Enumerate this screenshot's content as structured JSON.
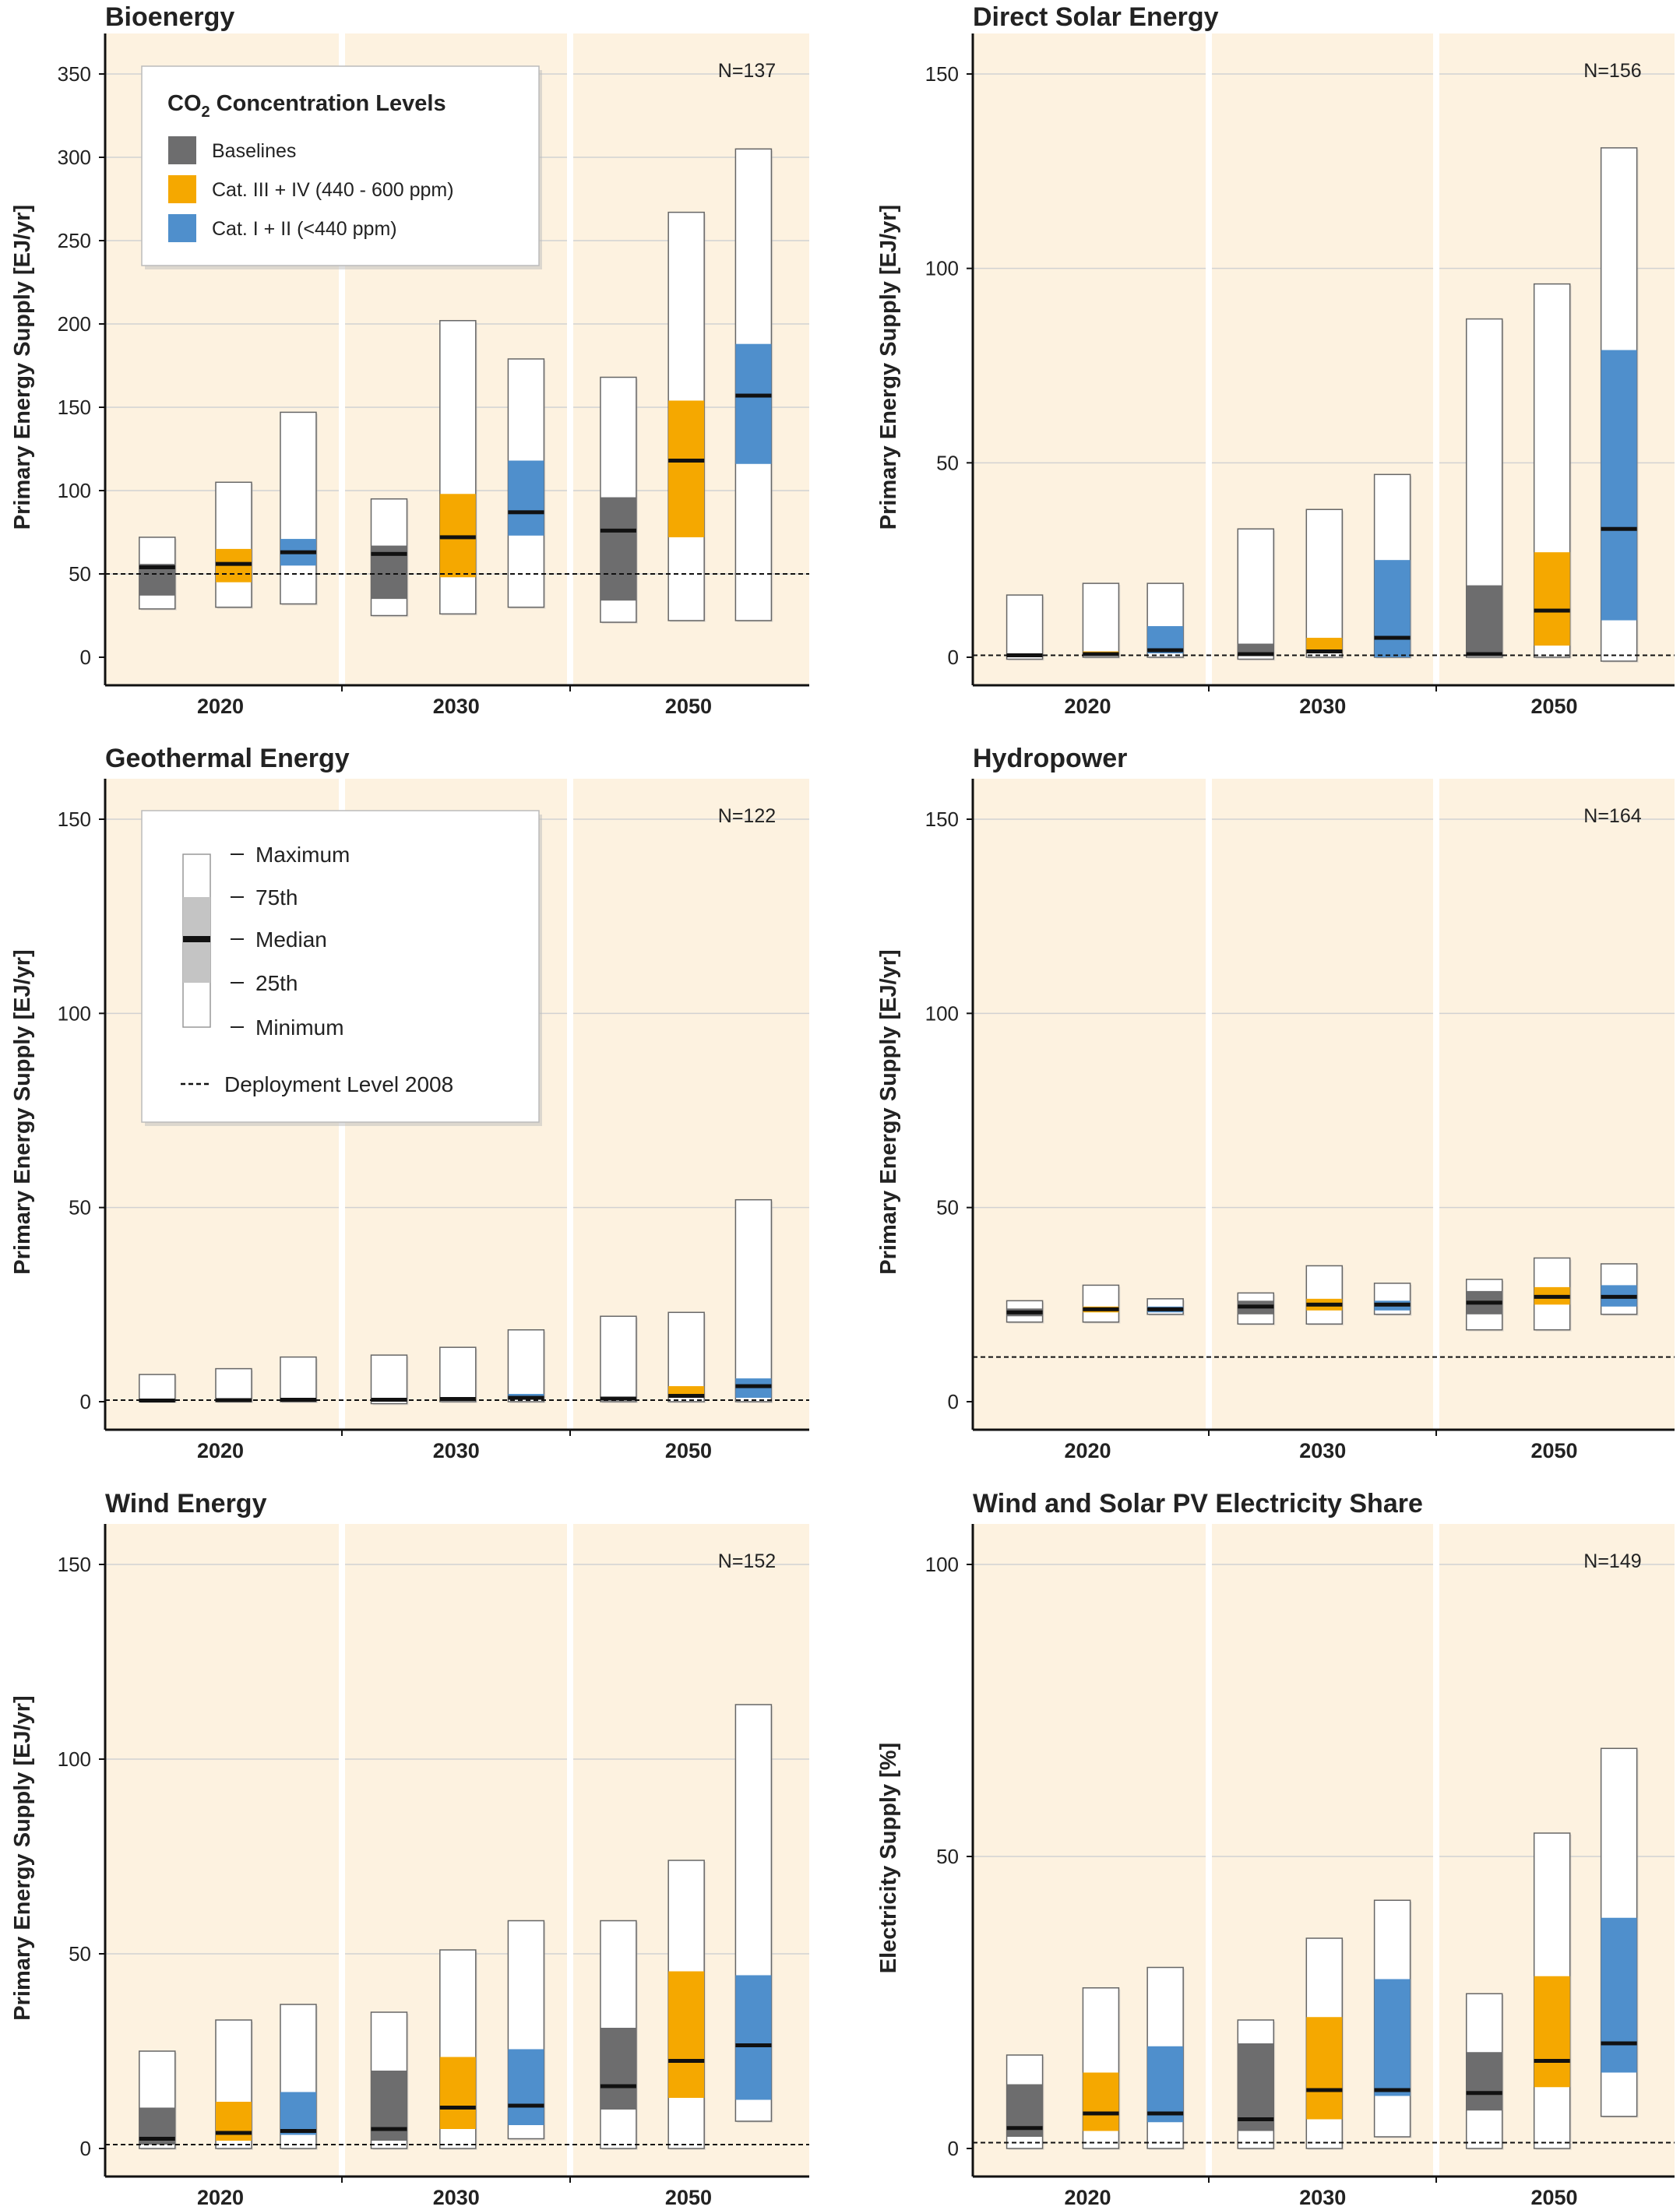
{
  "colors": {
    "background": "#fdf2e0",
    "baselines": "#6d6d6e",
    "cat34": "#f5a800",
    "cat12": "#4f8fcc",
    "grid": "#d2d2d2",
    "median": "#111111"
  },
  "legend": {
    "title_prefix": "CO",
    "title_sub": "2",
    "title_suffix": " Concentration Levels",
    "items": [
      {
        "label": "Baselines",
        "color": "#6d6d6e"
      },
      {
        "label": "Cat. III + IV (440 - 600 ppm)",
        "color": "#f5a800"
      },
      {
        "label": "Cat. I + II (<440 ppm)",
        "color": "#4f8fcc"
      }
    ]
  },
  "stat_legend": {
    "labels": [
      "Maximum",
      "75th",
      "Median",
      "25th",
      "Minimum"
    ],
    "deployment_label": "Deployment Level 2008"
  },
  "chart_data": [
    {
      "type": "box",
      "title": "Bioenergy",
      "ylabel": "Primary Energy Supply [EJ/yr]",
      "ylim": [
        0,
        350
      ],
      "yticks": [
        0,
        50,
        100,
        150,
        200,
        250,
        300,
        350
      ],
      "n_label": "N=137",
      "deployment_2008": 50,
      "categories": [
        "2020",
        "2030",
        "2050"
      ],
      "series": [
        {
          "name": "Baselines",
          "stats": [
            [
              29,
              37,
              54,
              56,
              72
            ],
            [
              25,
              35,
              62,
              67,
              95
            ],
            [
              21,
              34,
              76,
              96,
              168
            ]
          ]
        },
        {
          "name": "Cat. III + IV (440 - 600 ppm)",
          "stats": [
            [
              30,
              45,
              56,
              65,
              105
            ],
            [
              26,
              48,
              72,
              98,
              202
            ],
            [
              22,
              72,
              118,
              154,
              267
            ]
          ]
        },
        {
          "name": "Cat. I + II (<440 ppm)",
          "stats": [
            [
              32,
              55,
              63,
              71,
              147
            ],
            [
              30,
              73,
              87,
              118,
              179
            ],
            [
              22,
              116,
              157,
              188,
              305
            ]
          ]
        }
      ]
    },
    {
      "type": "box",
      "title": "Direct Solar Energy",
      "ylabel": "Primary Energy Supply [EJ/yr]",
      "ylim": [
        0,
        150
      ],
      "yticks": [
        0,
        50,
        100,
        150
      ],
      "n_label": "N=156",
      "deployment_2008": 0.5,
      "categories": [
        "2020",
        "2030",
        "2050"
      ],
      "series": [
        {
          "name": "Baselines",
          "stats": [
            [
              -0.5,
              0.2,
              0.5,
              1,
              16
            ],
            [
              -0.5,
              0.5,
              0.8,
              3.5,
              33
            ],
            [
              0,
              0.5,
              0.8,
              18.5,
              87
            ]
          ]
        },
        {
          "name": "Cat. III + IV (440 - 600 ppm)",
          "stats": [
            [
              0,
              0.3,
              0.8,
              1.5,
              19
            ],
            [
              0,
              1,
              1.5,
              5,
              38
            ],
            [
              0,
              3,
              12,
              27,
              96
            ]
          ]
        },
        {
          "name": "Cat. I + II (<440 ppm)",
          "stats": [
            [
              0,
              1,
              1.8,
              8,
              19
            ],
            [
              0,
              0,
              5,
              25,
              47
            ],
            [
              -1,
              9.5,
              33,
              79,
              131
            ]
          ]
        }
      ]
    },
    {
      "type": "box",
      "title": "Geothermal Energy",
      "ylabel": "Primary Energy Supply [EJ/yr]",
      "ylim": [
        0,
        150
      ],
      "yticks": [
        0,
        50,
        100,
        150
      ],
      "n_label": "N=122",
      "deployment_2008": 0.4,
      "categories": [
        "2020",
        "2030",
        "2050"
      ],
      "series": [
        {
          "name": "Baselines",
          "stats": [
            [
              0,
              0.1,
              0.3,
              0.5,
              7
            ],
            [
              -0.5,
              0.2,
              0.5,
              0.8,
              12
            ],
            [
              0,
              0.3,
              0.8,
              1.2,
              22
            ]
          ]
        },
        {
          "name": "Cat. III + IV (440 - 600 ppm)",
          "stats": [
            [
              0,
              0.2,
              0.4,
              0.6,
              8.5
            ],
            [
              0,
              0.3,
              0.7,
              1,
              14
            ],
            [
              0,
              1,
              1.5,
              4,
              23
            ]
          ]
        },
        {
          "name": "Cat. I + II (<440 ppm)",
          "stats": [
            [
              0,
              0.2,
              0.5,
              0.8,
              11.5
            ],
            [
              0,
              0.5,
              1,
              2,
              18.5
            ],
            [
              0,
              1,
              4,
              6,
              52
            ]
          ]
        }
      ]
    },
    {
      "type": "box",
      "title": "Hydropower",
      "ylabel": "Primary Energy Supply [EJ/yr]",
      "ylim": [
        0,
        150
      ],
      "yticks": [
        0,
        50,
        100,
        150
      ],
      "n_label": "N=164",
      "deployment_2008": 11.5,
      "categories": [
        "2020",
        "2030",
        "2050"
      ],
      "series": [
        {
          "name": "Baselines",
          "stats": [
            [
              20.5,
              22,
              23,
              24,
              26
            ],
            [
              20,
              22.5,
              24.5,
              26,
              28
            ],
            [
              18.5,
              22.5,
              25.5,
              28.5,
              31.5
            ]
          ]
        },
        {
          "name": "Cat. III + IV (440 - 600 ppm)",
          "stats": [
            [
              20.5,
              23,
              23.8,
              24.5,
              30
            ],
            [
              20,
              23.5,
              25,
              26.5,
              35
            ],
            [
              18.5,
              25,
              27,
              29.5,
              37
            ]
          ]
        },
        {
          "name": "Cat. I + II (<440 ppm)",
          "stats": [
            [
              22.5,
              23,
              23.8,
              24.5,
              26.5
            ],
            [
              22.5,
              23.5,
              25,
              26,
              30.5
            ],
            [
              22.5,
              24.5,
              27,
              30,
              35.5
            ]
          ]
        }
      ]
    },
    {
      "type": "box",
      "title": "Wind Energy",
      "ylabel": "Primary Energy Supply [EJ/yr]",
      "ylim": [
        0,
        150
      ],
      "yticks": [
        0,
        50,
        100,
        150
      ],
      "n_label": "N=152",
      "deployment_2008": 1,
      "categories": [
        "2020",
        "2030",
        "2050"
      ],
      "series": [
        {
          "name": "Baselines",
          "stats": [
            [
              0,
              1,
              2.5,
              10.5,
              25
            ],
            [
              0,
              2,
              5,
              20,
              35
            ],
            [
              0,
              10,
              16,
              31,
              58.5
            ]
          ]
        },
        {
          "name": "Cat. III + IV (440 - 600 ppm)",
          "stats": [
            [
              0,
              2,
              4,
              12,
              33
            ],
            [
              0,
              5,
              10.5,
              23.5,
              51
            ],
            [
              0,
              13,
              22.5,
              45.5,
              74
            ]
          ]
        },
        {
          "name": "Cat. I + II (<440 ppm)",
          "stats": [
            [
              0,
              3.5,
              4.5,
              14.5,
              37
            ],
            [
              2.5,
              6,
              11,
              25.5,
              58.5
            ],
            [
              7,
              12.5,
              26.5,
              44.5,
              114
            ]
          ]
        }
      ]
    },
    {
      "type": "box",
      "title": "Wind and Solar PV Electricity Share",
      "ylabel": "Electricity Supply [%]",
      "ylim": [
        0,
        100
      ],
      "yticks": [
        0,
        50,
        100
      ],
      "n_label": "N=149",
      "deployment_2008": 1,
      "categories": [
        "2020",
        "2030",
        "2050"
      ],
      "series": [
        {
          "name": "Baselines",
          "stats": [
            [
              0,
              2,
              3.5,
              11,
              16
            ],
            [
              0,
              3,
              5,
              18,
              22
            ],
            [
              0,
              6.5,
              9.5,
              16.5,
              26.5
            ]
          ]
        },
        {
          "name": "Cat. III + IV (440 - 600 ppm)",
          "stats": [
            [
              0,
              3,
              6,
              13,
              27.5
            ],
            [
              0,
              5,
              10,
              22.5,
              36
            ],
            [
              0,
              10.5,
              15,
              29.5,
              54
            ]
          ]
        },
        {
          "name": "Cat. I + II (<440 ppm)",
          "stats": [
            [
              0,
              4.5,
              6,
              17.5,
              31
            ],
            [
              2,
              9,
              10,
              29,
              42.5
            ],
            [
              5.5,
              13,
              18,
              39.5,
              68.5
            ]
          ]
        }
      ]
    }
  ]
}
